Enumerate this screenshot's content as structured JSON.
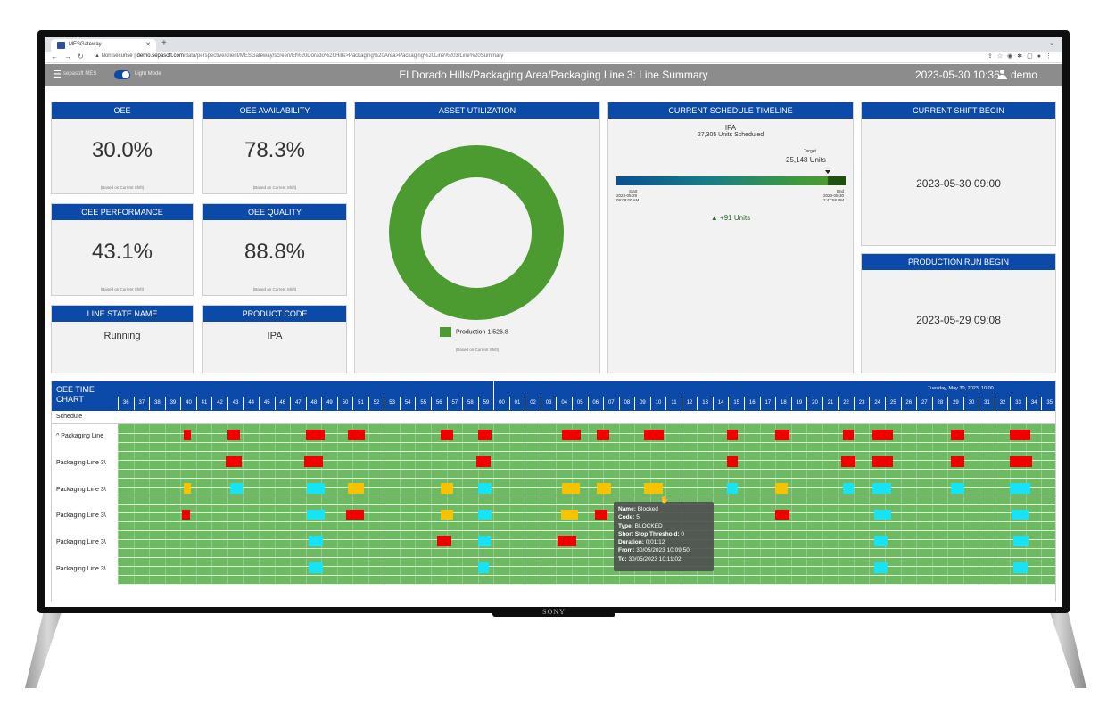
{
  "browser": {
    "tab_title": "MESGateway",
    "url_warning": "▲ Non sécurisé",
    "url_host": "demo.sepasoft.com",
    "url_path": "/data/perspective/client/MESGateway/screen/El%20Dorado%20Hills>Packaging%20Area>Packaging%20Line%203/Line%20Summary"
  },
  "header": {
    "logo": "sepasoft MES",
    "mode_label": "Light Mode",
    "title": "El Dorado Hills/Packaging Area/Packaging Line 3: Line Summary",
    "datetime": "2023-05-30 10:36",
    "user": "demo"
  },
  "kpis": {
    "oee": {
      "label": "OEE",
      "value": "30.0%",
      "note": "(Based on Current Shift)"
    },
    "availability": {
      "label": "OEE AVAILABILITY",
      "value": "78.3%",
      "note": "(Based on Current Shift)"
    },
    "performance": {
      "label": "OEE PERFORMANCE",
      "value": "43.1%",
      "note": "(Based on Current Shift)"
    },
    "quality": {
      "label": "OEE QUALITY",
      "value": "88.8%",
      "note": "(Based on Current Shift)"
    }
  },
  "line_state": {
    "label": "LINE STATE NAME",
    "value": "Running"
  },
  "product_code": {
    "label": "PRODUCT CODE",
    "value": "IPA"
  },
  "asset_utilization": {
    "label": "ASSET UTILIZATION",
    "legend_name": "Production",
    "legend_value": "1,526.8",
    "note": "(Based on Current Shift)",
    "color": "#4c9b31"
  },
  "schedule": {
    "label": "CURRENT SCHEDULE TIMELINE",
    "product": "IPA",
    "scheduled": "27,305 Units Scheduled",
    "target_label": "Target",
    "target_value": "25,148 Units",
    "start_label": "Start",
    "start_date": "2023-05-29",
    "start_time": "09:08:00 AM",
    "end_label": "End",
    "end_date": "2023-05-30",
    "end_time": "12:47:58 PM",
    "delta": "▲ +91 Units"
  },
  "shift": {
    "label": "CURRENT SHIFT BEGIN",
    "value": "2023-05-30 09:00"
  },
  "production_run": {
    "label": "PRODUCTION RUN BEGIN",
    "value": "2023-05-29 09:08"
  },
  "oee_chart": {
    "title_line1": "OEE TIME",
    "title_line2": "CHART",
    "date_label": "Tuesday, May 30, 2023, 10:00",
    "minutes": [
      "36",
      "37",
      "38",
      "39",
      "40",
      "41",
      "42",
      "43",
      "44",
      "45",
      "46",
      "47",
      "48",
      "49",
      "50",
      "51",
      "52",
      "53",
      "54",
      "55",
      "56",
      "57",
      "58",
      "59",
      "00",
      "01",
      "02",
      "03",
      "04",
      "05",
      "06",
      "07",
      "08",
      "09",
      "10",
      "11",
      "12",
      "13",
      "14",
      "15",
      "16",
      "17",
      "18",
      "19",
      "20",
      "21",
      "22",
      "23",
      "24",
      "25",
      "26",
      "27",
      "28",
      "29",
      "30",
      "31",
      "32",
      "33",
      "34",
      "35"
    ],
    "schedule_label": "Schedule",
    "rows": [
      "^ Packaging Line",
      "Packaging Line 3\\",
      "Packaging Line 3\\",
      "Packaging Line 3\\",
      "Packaging Line 3\\",
      "Packaging Line 3\\"
    ],
    "colors": {
      "running": "#6dba62",
      "blocked": "#f00000",
      "starved": "#f7c300",
      "idle": "#16e3f5"
    }
  },
  "tooltip": {
    "name_key": "Name:",
    "name": "Blocked",
    "code_key": "Code:",
    "code": "5",
    "type_key": "Type:",
    "type": "BLOCKED",
    "threshold_key": "Short Stop Threshold:",
    "threshold": "0",
    "duration_key": "Duration:",
    "duration": "0:01:12",
    "from_key": "From:",
    "from": "30/05/2023 10:09:50",
    "to_key": "To:",
    "to": "30/05/2023 10:11:02"
  },
  "tv_brand": "SONY"
}
